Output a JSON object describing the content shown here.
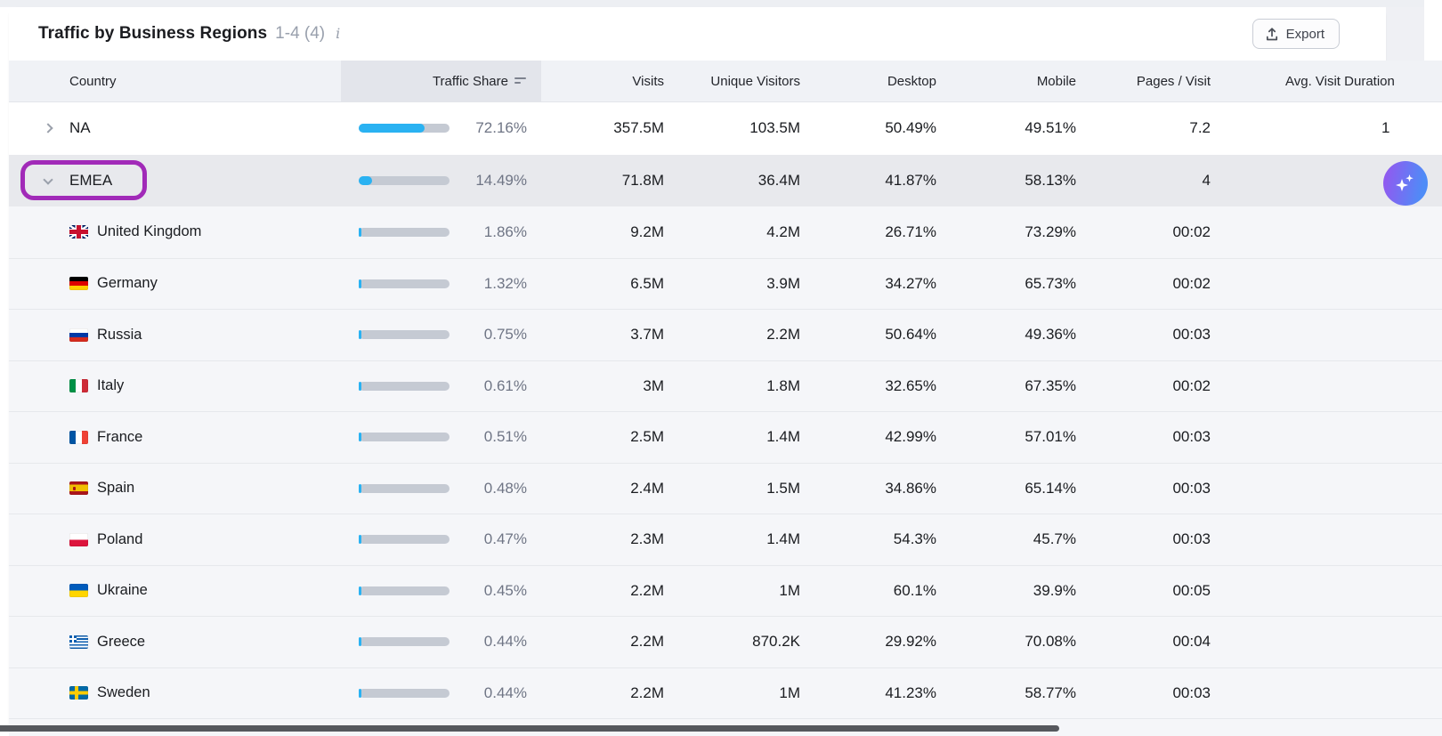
{
  "card": {
    "title": "Traffic by Business Regions",
    "range_label": "1-4 (4)",
    "export_label": "Export"
  },
  "table": {
    "columns": [
      "Country",
      "Traffic Share",
      "Visits",
      "Unique Visitors",
      "Desktop",
      "Mobile",
      "Pages / Visit",
      "Avg. Visit Duration"
    ],
    "sorted_column": "Traffic Share",
    "rows": [
      {
        "type": "region",
        "label": "NA",
        "expanded": false,
        "selected": false,
        "annotated": false,
        "share": "72.16%",
        "share_pct": 72.16,
        "visits": "357.5M",
        "unique_visitors": "103.5M",
        "desktop": "50.49%",
        "mobile": "49.51%",
        "pages_visit": "7.2",
        "avg_visit": "1"
      },
      {
        "type": "region",
        "label": "EMEA",
        "expanded": true,
        "selected": true,
        "annotated": true,
        "share": "14.49%",
        "share_pct": 14.49,
        "visits": "71.8M",
        "unique_visitors": "36.4M",
        "desktop": "41.87%",
        "mobile": "58.13%",
        "pages_visit": "4",
        "avg_visit": ""
      },
      {
        "type": "country",
        "label": "United Kingdom",
        "flag": "gb",
        "share": "1.86%",
        "share_pct": 1.86,
        "visits": "9.2M",
        "unique_visitors": "4.2M",
        "desktop": "26.71%",
        "mobile": "73.29%",
        "pages_visit": "00:02",
        "avg_visit": ""
      },
      {
        "type": "country",
        "label": "Germany",
        "flag": "de",
        "share": "1.32%",
        "share_pct": 1.32,
        "visits": "6.5M",
        "unique_visitors": "3.9M",
        "desktop": "34.27%",
        "mobile": "65.73%",
        "pages_visit": "00:02",
        "avg_visit": ""
      },
      {
        "type": "country",
        "label": "Russia",
        "flag": "ru",
        "share": "0.75%",
        "share_pct": 0.75,
        "visits": "3.7M",
        "unique_visitors": "2.2M",
        "desktop": "50.64%",
        "mobile": "49.36%",
        "pages_visit": "00:03",
        "avg_visit": ""
      },
      {
        "type": "country",
        "label": "Italy",
        "flag": "it",
        "share": "0.61%",
        "share_pct": 0.61,
        "visits": "3M",
        "unique_visitors": "1.8M",
        "desktop": "32.65%",
        "mobile": "67.35%",
        "pages_visit": "00:02",
        "avg_visit": ""
      },
      {
        "type": "country",
        "label": "France",
        "flag": "fr",
        "share": "0.51%",
        "share_pct": 0.51,
        "visits": "2.5M",
        "unique_visitors": "1.4M",
        "desktop": "42.99%",
        "mobile": "57.01%",
        "pages_visit": "00:03",
        "avg_visit": ""
      },
      {
        "type": "country",
        "label": "Spain",
        "flag": "es",
        "share": "0.48%",
        "share_pct": 0.48,
        "visits": "2.4M",
        "unique_visitors": "1.5M",
        "desktop": "34.86%",
        "mobile": "65.14%",
        "pages_visit": "00:03",
        "avg_visit": ""
      },
      {
        "type": "country",
        "label": "Poland",
        "flag": "pl",
        "share": "0.47%",
        "share_pct": 0.47,
        "visits": "2.3M",
        "unique_visitors": "1.4M",
        "desktop": "54.3%",
        "mobile": "45.7%",
        "pages_visit": "00:03",
        "avg_visit": ""
      },
      {
        "type": "country",
        "label": "Ukraine",
        "flag": "ua",
        "share": "0.45%",
        "share_pct": 0.45,
        "visits": "2.2M",
        "unique_visitors": "1M",
        "desktop": "60.1%",
        "mobile": "39.9%",
        "pages_visit": "00:05",
        "avg_visit": ""
      },
      {
        "type": "country",
        "label": "Greece",
        "flag": "gr",
        "share": "0.44%",
        "share_pct": 0.44,
        "visits": "2.2M",
        "unique_visitors": "870.2K",
        "desktop": "29.92%",
        "mobile": "70.08%",
        "pages_visit": "00:04",
        "avg_visit": ""
      },
      {
        "type": "country",
        "label": "Sweden",
        "flag": "se",
        "share": "0.44%",
        "share_pct": 0.44,
        "visits": "2.2M",
        "unique_visitors": "1M",
        "desktop": "41.23%",
        "mobile": "58.77%",
        "pages_visit": "00:03",
        "avg_visit": ""
      }
    ]
  },
  "colors": {
    "bar_fill_blue": "#2AB2F2",
    "bar_track_grey": "#C5CAD3",
    "annotation_purple": "#A12AB8",
    "selected_row_grey": "#E8E9ED",
    "header_row_grey": "#F0F2F6",
    "sorted_header_cell": "#E3E5EB",
    "ai_gradient_start": "#8F5BF0",
    "ai_gradient_end": "#4E8CF7"
  }
}
